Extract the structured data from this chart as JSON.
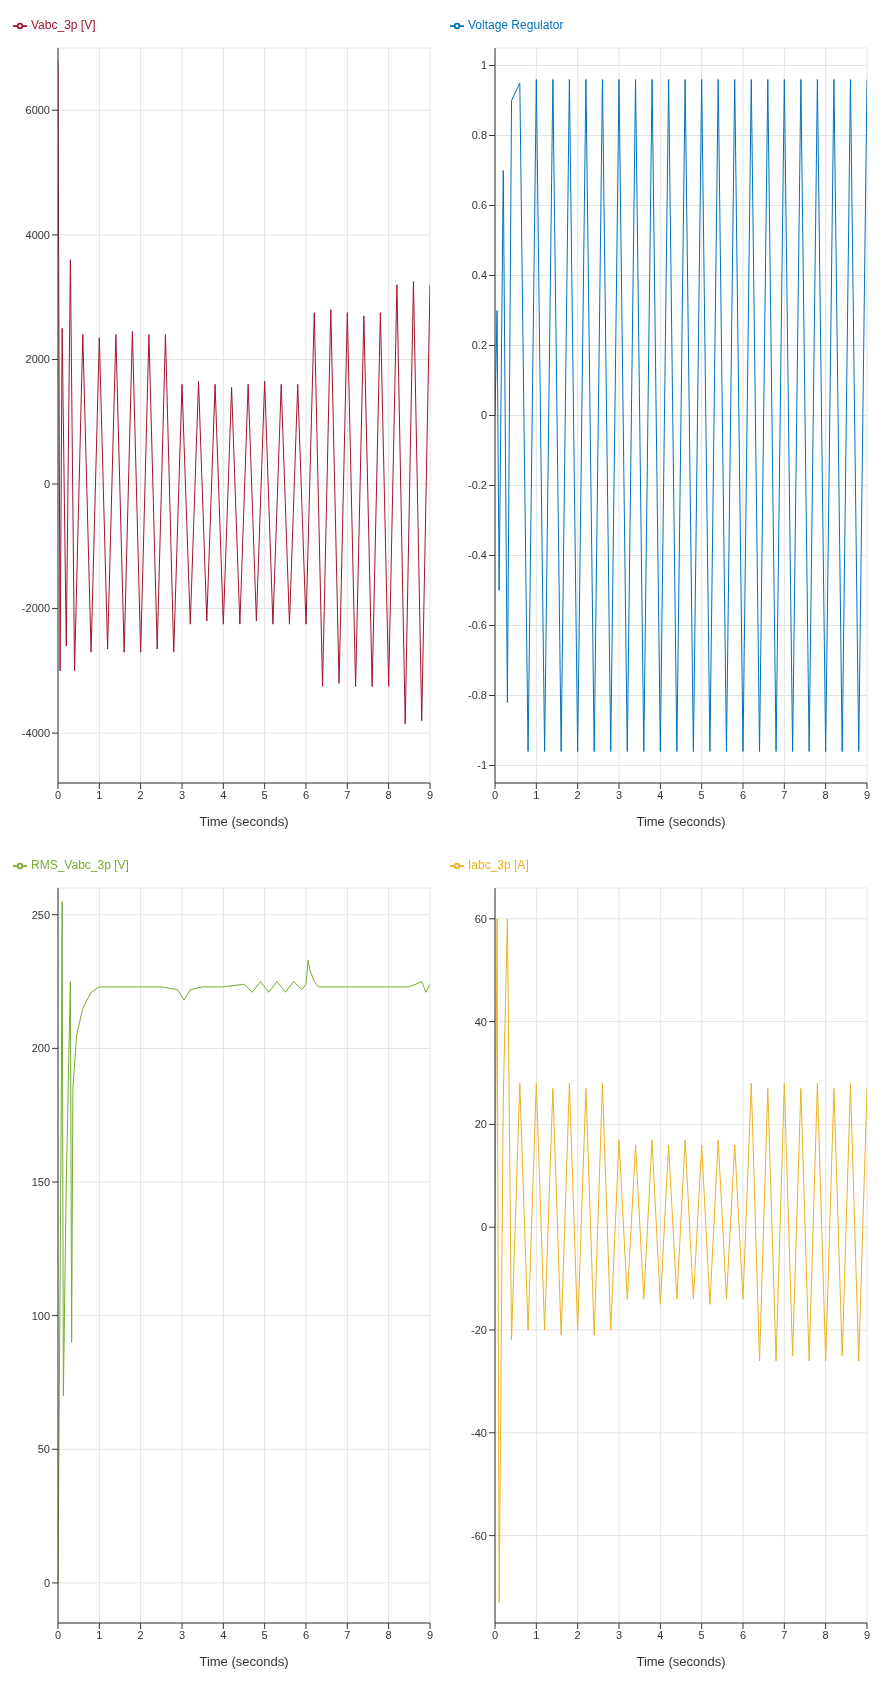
{
  "chart_data": [
    {
      "type": "line",
      "xlabel": "Time (seconds)",
      "xlim": [
        0,
        9
      ],
      "xticks": [
        0,
        1,
        2,
        3,
        4,
        5,
        6,
        7,
        8,
        9
      ],
      "ylim": [
        -4800,
        7000
      ],
      "yticks": [
        -4000,
        -2000,
        0,
        2000,
        4000,
        6000
      ],
      "grid": true,
      "legend": "top left",
      "series": [
        {
          "name": "Vabc_3p [V]",
          "color": "#a2142f",
          "x": [
            0,
            0.05,
            0.1,
            0.2,
            0.3,
            0.4,
            0.6,
            0.8,
            1,
            1.2,
            1.4,
            1.6,
            1.8,
            2,
            2.2,
            2.4,
            2.6,
            2.8,
            3,
            3.2,
            3.4,
            3.6,
            3.8,
            4,
            4.2,
            4.4,
            4.6,
            4.8,
            5,
            5.2,
            5.4,
            5.6,
            5.8,
            6,
            6.2,
            6.4,
            6.6,
            6.8,
            7,
            7.2,
            7.4,
            7.6,
            7.8,
            8,
            8.2,
            8.4,
            8.6,
            8.8,
            9
          ],
          "values": [
            6800,
            -3000,
            2500,
            -2600,
            3600,
            -3000,
            2400,
            -2700,
            2350,
            -2650,
            2400,
            -2700,
            2450,
            -2700,
            2400,
            -2650,
            2400,
            -2700,
            1600,
            -2250,
            1650,
            -2200,
            1600,
            -2250,
            1550,
            -2250,
            1600,
            -2200,
            1650,
            -2250,
            1600,
            -2250,
            1600,
            -2250,
            2750,
            -3250,
            2800,
            -3200,
            2750,
            -3250,
            2700,
            -3250,
            2750,
            -3250,
            3200,
            -3850,
            3250,
            -3800,
            3200
          ]
        }
      ]
    },
    {
      "type": "line",
      "xlabel": "Time (seconds)",
      "xlim": [
        0,
        9
      ],
      "xticks": [
        0,
        1,
        2,
        3,
        4,
        5,
        6,
        7,
        8,
        9
      ],
      "ylim": [
        -1.05,
        1.05
      ],
      "yticks": [
        -1,
        -0.8,
        -0.6,
        -0.4,
        -0.2,
        0,
        0.2,
        0.4,
        0.6,
        0.8,
        1
      ],
      "grid": true,
      "legend": "top left",
      "series": [
        {
          "name": "Voltage Regulator",
          "color": "#0072bd",
          "x": [
            0,
            0.05,
            0.1,
            0.2,
            0.3,
            0.4,
            0.6,
            0.8,
            1,
            1.2,
            1.4,
            1.6,
            1.8,
            2,
            2.2,
            2.4,
            2.6,
            2.8,
            3,
            3.2,
            3.4,
            3.6,
            3.8,
            4,
            4.2,
            4.4,
            4.6,
            4.8,
            5,
            5.2,
            5.4,
            5.6,
            5.8,
            6,
            6.2,
            6.4,
            6.6,
            6.8,
            7,
            7.2,
            7.4,
            7.6,
            7.8,
            8,
            8.2,
            8.4,
            8.6,
            8.8,
            9
          ],
          "values": [
            0,
            0.3,
            -0.5,
            0.7,
            -0.82,
            0.9,
            0.95,
            -0.96,
            0.96,
            -0.96,
            0.96,
            -0.96,
            0.96,
            -0.96,
            0.96,
            -0.96,
            0.96,
            -0.96,
            0.96,
            -0.96,
            0.96,
            -0.96,
            0.96,
            -0.96,
            0.96,
            -0.96,
            0.96,
            -0.96,
            0.96,
            -0.96,
            0.96,
            -0.96,
            0.96,
            -0.96,
            0.96,
            -0.96,
            0.96,
            -0.96,
            0.96,
            -0.96,
            0.96,
            -0.96,
            0.96,
            -0.96,
            0.96,
            -0.96,
            0.96,
            -0.96,
            0.96
          ]
        }
      ]
    },
    {
      "type": "line",
      "xlabel": "Time (seconds)",
      "xlim": [
        0,
        9
      ],
      "xticks": [
        0,
        1,
        2,
        3,
        4,
        5,
        6,
        7,
        8,
        9
      ],
      "ylim": [
        -15,
        260
      ],
      "yticks": [
        0,
        50,
        100,
        150,
        200,
        250
      ],
      "grid": true,
      "legend": "top left",
      "series": [
        {
          "name": "RMS_Vabc_3p [V]",
          "color": "#77ac30",
          "x": [
            0,
            0.08,
            0.1,
            0.13,
            0.2,
            0.3,
            0.33,
            0.36,
            0.45,
            0.6,
            0.8,
            1,
            1.5,
            2,
            2.5,
            2.9,
            3.05,
            3.2,
            3.5,
            4,
            4.5,
            4.7,
            4.9,
            5.1,
            5.3,
            5.5,
            5.7,
            5.9,
            6,
            6.05,
            6.1,
            6.2,
            6.3,
            6.5,
            7,
            7.5,
            8,
            8.5,
            8.8,
            8.9,
            9
          ],
          "values": [
            0,
            180,
            255,
            70,
            150,
            225,
            90,
            185,
            205,
            215,
            221,
            223,
            223,
            223,
            223,
            222,
            218,
            222,
            223,
            223,
            224,
            221,
            225,
            221,
            225,
            221,
            225,
            222,
            224,
            233,
            229,
            225,
            223,
            223,
            223,
            223,
            223,
            223,
            225,
            221,
            224
          ]
        }
      ]
    },
    {
      "type": "line",
      "xlabel": "Time (seconds)",
      "xlim": [
        0,
        9
      ],
      "xticks": [
        0,
        1,
        2,
        3,
        4,
        5,
        6,
        7,
        8,
        9
      ],
      "ylim": [
        -77,
        66
      ],
      "yticks": [
        -60,
        -40,
        -20,
        0,
        20,
        40,
        60
      ],
      "grid": true,
      "legend": "top left",
      "series": [
        {
          "name": "Iabc_3p [A]",
          "color": "#edb120",
          "x": [
            0,
            0.05,
            0.1,
            0.2,
            0.3,
            0.4,
            0.6,
            0.8,
            1,
            1.2,
            1.4,
            1.6,
            1.8,
            2,
            2.2,
            2.4,
            2.6,
            2.8,
            3,
            3.2,
            3.4,
            3.6,
            3.8,
            4,
            4.2,
            4.4,
            4.6,
            4.8,
            5,
            5.2,
            5.4,
            5.6,
            5.8,
            6,
            6.2,
            6.4,
            6.6,
            6.8,
            7,
            7.2,
            7.4,
            7.6,
            7.8,
            8,
            8.2,
            8.4,
            8.6,
            8.8,
            9
          ],
          "values": [
            0,
            60,
            -73,
            25,
            60,
            -22,
            28,
            -20,
            28,
            -20,
            27,
            -21,
            28,
            -20,
            27,
            -21,
            28,
            -20,
            17,
            -14,
            16,
            -14,
            17,
            -15,
            16,
            -14,
            17,
            -14,
            16,
            -15,
            17,
            -14,
            16,
            -14,
            28,
            -26,
            27,
            -26,
            28,
            -25,
            27,
            -26,
            28,
            -26,
            27,
            -25,
            28,
            -26,
            27
          ]
        }
      ]
    }
  ]
}
